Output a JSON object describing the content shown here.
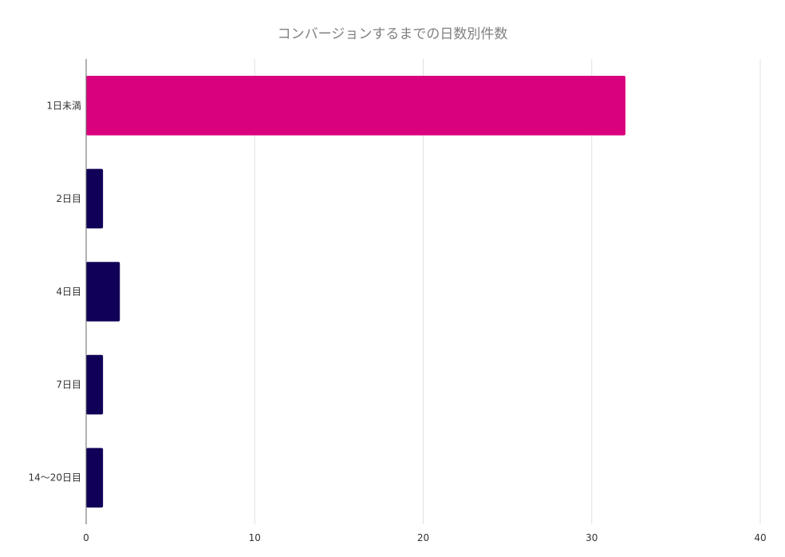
{
  "chart_data": {
    "type": "bar",
    "orientation": "horizontal",
    "title": "コンバージョンするまでの日数別件数",
    "xlabel": "",
    "ylabel": "",
    "categories": [
      "1日未満",
      "2日目",
      "4日目",
      "7日目",
      "14〜20日目"
    ],
    "values": [
      32,
      1,
      2,
      1,
      1
    ],
    "xlim": [
      0,
      40
    ],
    "x_ticks": [
      0,
      10,
      20,
      30,
      40
    ],
    "grid": true,
    "legend": "none",
    "colors": [
      "#d9017e",
      "#110057",
      "#110057",
      "#110057",
      "#110057"
    ]
  },
  "style": {
    "grid_color": "#e0e0e0",
    "axis_color": "#666666",
    "title_color": "#808080"
  }
}
